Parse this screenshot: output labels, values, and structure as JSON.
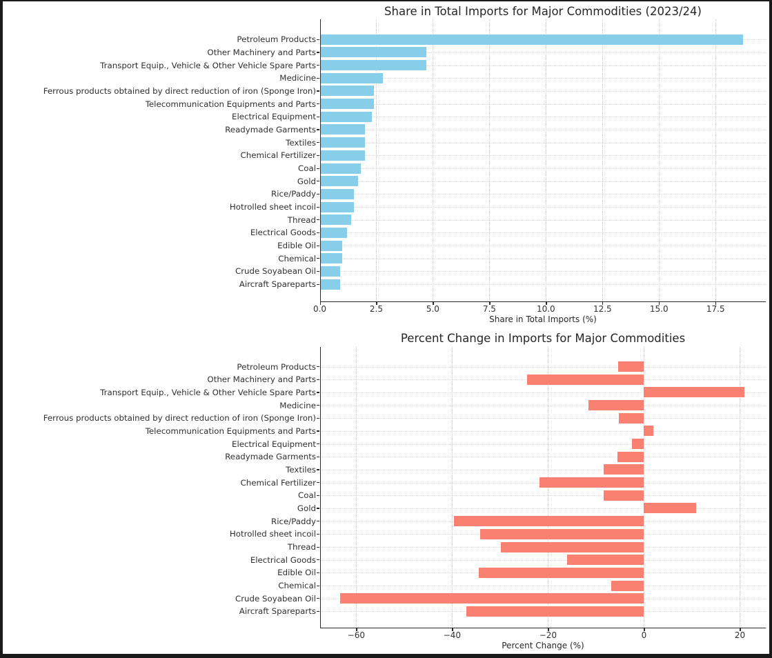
{
  "figure": {
    "background_color": "#ffffff",
    "border_color": "#1a1a1a"
  },
  "chart_data": [
    {
      "type": "bar",
      "orientation": "horizontal",
      "title": "Share in Total Imports for Major Commodities (2023/24)",
      "xlabel": "Share in Total Imports (%)",
      "bar_color": "#87ceeb",
      "grid": "dotted-both-axes",
      "xlim": [
        0,
        19.72
      ],
      "xticks": [
        {
          "value": 0,
          "label": "0.0"
        },
        {
          "value": 2.5,
          "label": "2.5"
        },
        {
          "value": 5,
          "label": "5.0"
        },
        {
          "value": 7.5,
          "label": "7.5"
        },
        {
          "value": 10,
          "label": "10.0"
        },
        {
          "value": 12.5,
          "label": "12.5"
        },
        {
          "value": 15,
          "label": "15.0"
        },
        {
          "value": 17.5,
          "label": "17.5"
        }
      ],
      "categories": [
        "Petroleum Products",
        "Other Machinery and Parts",
        "Transport Equip., Vehicle & Other Vehicle Spare Parts",
        "Medicine",
        "Ferrous products obtained by direct reduction of iron (Sponge Iron)",
        "Telecommunication Equipments and Parts",
        "Electrical Equipment",
        "Readymade Garments",
        "Textiles",
        "Chemical Fertilizer",
        "Coal",
        "Gold",
        "Rice/Paddy",
        "Hotrolled sheet incoil",
        "Thread",
        "Electrical Goods",
        "Edible Oil",
        "Chemical",
        "Crude Soyabean Oil",
        "Aircraft Spareparts"
      ],
      "values": [
        18.7,
        4.7,
        4.7,
        2.8,
        2.4,
        2.4,
        2.3,
        2.0,
        2.0,
        2.0,
        1.8,
        1.7,
        1.5,
        1.5,
        1.4,
        1.2,
        1.0,
        1.0,
        0.9,
        0.9
      ]
    },
    {
      "type": "bar",
      "orientation": "horizontal",
      "title": "Percent Change in Imports for Major Commodities",
      "xlabel": "Percent Change (%)",
      "bar_color": "#fa8072",
      "grid": "dotted-both-axes",
      "xlim": [
        -67.6,
        25.4
      ],
      "xticks": [
        {
          "value": -60,
          "label": "−60"
        },
        {
          "value": -40,
          "label": "−40"
        },
        {
          "value": -20,
          "label": "−20"
        },
        {
          "value": 0,
          "label": "0"
        },
        {
          "value": 20,
          "label": "20"
        }
      ],
      "categories": [
        "Petroleum Products",
        "Other Machinery and Parts",
        "Transport Equip., Vehicle & Other Vehicle Spare Parts",
        "Medicine",
        "Ferrous products obtained by direct reduction of iron (Sponge Iron)",
        "Telecommunication Equipments and Parts",
        "Electrical Equipment",
        "Readymade Garments",
        "Textiles",
        "Chemical Fertilizer",
        "Coal",
        "Gold",
        "Rice/Paddy",
        "Hotrolled sheet incoil",
        "Thread",
        "Electrical Goods",
        "Edible Oil",
        "Chemical",
        "Crude Soyabean Oil",
        "Aircraft Spareparts"
      ],
      "values": [
        -5.4,
        -24.4,
        21.0,
        -11.5,
        -5.3,
        1.9,
        -2.5,
        -5.6,
        -8.4,
        -21.8,
        -8.4,
        10.9,
        -39.6,
        -34.1,
        -29.9,
        -16.0,
        -34.5,
        -6.8,
        -63.3,
        -37.0
      ]
    }
  ]
}
